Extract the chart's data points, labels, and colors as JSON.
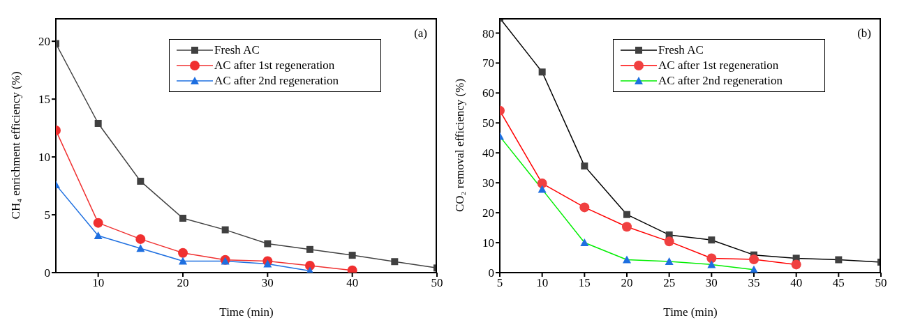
{
  "chart_data": [
    {
      "type": "line",
      "xlabel": "Time (min)",
      "ylabel": "CH₄ enrichment efficiency (%)",
      "annotations": [
        "(a)"
      ],
      "xlim": [
        5,
        50
      ],
      "xticks": [
        10,
        20,
        30,
        40,
        50
      ],
      "ylim": [
        0,
        22
      ],
      "yticks": [
        0,
        5,
        10,
        15,
        20
      ],
      "legend": "top right",
      "grid": false,
      "line_style": "solid",
      "series": [
        {
          "name": "Fresh AC",
          "color": "#404040",
          "marker": "square",
          "x": [
            5,
            10,
            15,
            20,
            25,
            30,
            35,
            40,
            45,
            50
          ],
          "values": [
            19.8,
            12.9,
            7.9,
            4.7,
            3.7,
            2.5,
            2.0,
            1.5,
            0.95,
            0.4
          ]
        },
        {
          "name": "AC after 1st regeneration",
          "color": "#f03030",
          "marker": "circle",
          "x": [
            5,
            10,
            15,
            20,
            25,
            30,
            35,
            40
          ],
          "values": [
            12.3,
            4.3,
            2.9,
            1.7,
            1.1,
            1.0,
            0.6,
            0.2
          ]
        },
        {
          "name": "AC after 2nd regeneration",
          "color": "#1e6fe0",
          "marker": "triangle",
          "x": [
            5,
            10,
            15,
            20,
            25,
            30,
            35
          ],
          "values": [
            7.6,
            3.2,
            2.1,
            1.0,
            1.0,
            0.75,
            0.15
          ]
        }
      ]
    },
    {
      "type": "line",
      "xlabel": "Time (min)",
      "ylabel": "CO₂ removal efficiency (%)",
      "annotations": [
        "(b)"
      ],
      "xlim": [
        5,
        50
      ],
      "xticks": [
        5,
        10,
        15,
        20,
        25,
        30,
        35,
        40,
        45,
        50
      ],
      "ylim": [
        0,
        85
      ],
      "yticks": [
        0,
        10,
        20,
        30,
        40,
        50,
        60,
        70,
        80
      ],
      "legend": "top right",
      "grid": false,
      "line_style": "solid",
      "series": [
        {
          "name": "Fresh AC",
          "color": "#000000",
          "colors": [
            "#404040",
            "#404040",
            "#404040",
            "#404040",
            "#404040",
            "#404040",
            "#404040",
            "#404040",
            "#404040",
            "#404040"
          ],
          "marker": "square",
          "x": [
            5,
            10,
            15,
            20,
            25,
            30,
            35,
            40,
            45,
            50
          ],
          "values": [
            85,
            67,
            35.6,
            19.4,
            12.6,
            10.9,
            5.9,
            4.8,
            4.3,
            3.5
          ]
        },
        {
          "name": "AC after 1st regeneration",
          "color": "#ff0000",
          "colors": [
            "#f04040",
            "#f04040",
            "#f04040",
            "#f04040",
            "#f04040",
            "#f04040",
            "#f04040",
            "#f04040"
          ],
          "marker": "circle",
          "x": [
            5,
            10,
            15,
            20,
            25,
            30,
            35,
            40
          ],
          "values": [
            54.1,
            29.8,
            21.8,
            15.3,
            10.4,
            4.8,
            4.4,
            2.7
          ]
        },
        {
          "name": "AC after 2nd regeneration",
          "color": "#00ee00",
          "colors": [
            "#1e6fe0",
            "#1e6fe0",
            "#1e6fe0",
            "#1e6fe0",
            "#1e6fe0",
            "#1e6fe0",
            "#1e6fe0"
          ],
          "marker": "triangle",
          "x": [
            5,
            10,
            15,
            20,
            25,
            30,
            35
          ],
          "values": [
            45.5,
            27.8,
            10.0,
            4.3,
            3.7,
            2.7,
            1.0
          ]
        }
      ]
    }
  ]
}
